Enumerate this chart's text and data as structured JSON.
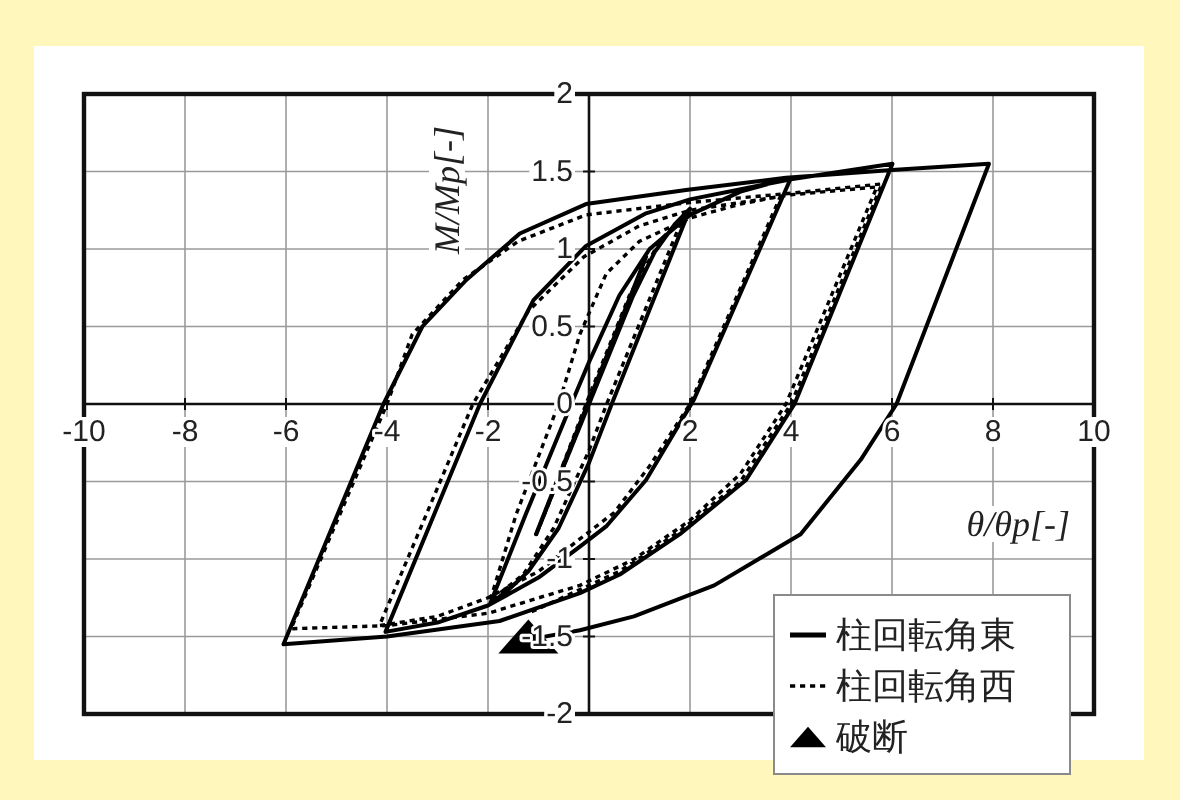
{
  "chart_data": {
    "type": "line",
    "xlabel": "θ/θp[-]",
    "ylabel": "M/Mp[-]",
    "xlim": [
      -10,
      10
    ],
    "ylim": [
      -2,
      2
    ],
    "xticks": [
      -10,
      -8,
      -6,
      -4,
      -2,
      {
        "value": 0,
        "label": null
      },
      2,
      4,
      6,
      8,
      10
    ],
    "yticks": [
      -2,
      -1.5,
      -1,
      -0.5,
      0,
      0.5,
      1,
      1.5,
      2
    ],
    "grid": true,
    "legend": "bottom right",
    "series": [
      {
        "name": "柱回転角東",
        "line_style": "solid",
        "color": "#000000",
        "x": [
          0,
          1.0,
          -1.05,
          1.13,
          -1.05,
          0.0,
          0.8,
          1.3,
          1.7,
          2.0,
          0.45,
          0.0,
          -0.6,
          -1.2,
          -1.6,
          -1.96,
          -1.25,
          -0.35,
          0.0,
          0.6,
          1.2,
          2.0,
          3.0,
          4.0,
          2.08,
          1.13,
          0.34,
          -0.18,
          -1.0,
          -2.0,
          -3.0,
          -4.03,
          -2.16,
          -1.1,
          -0.06,
          1.13,
          2.0,
          4.0,
          6.01,
          4.07,
          3.11,
          1.8,
          0.61,
          -0.18,
          -1.77,
          -4.0,
          -6.05,
          -4.07,
          -3.3,
          -2.43,
          -1.37,
          -0.06,
          1.92,
          3.9,
          6.0,
          7.92,
          6.09,
          5.38,
          4.19,
          2.48,
          0.89,
          -0.18,
          -1.2
        ],
        "values": [
          0,
          0.8,
          -0.84,
          0.95,
          -0.84,
          0.0,
          0.65,
          0.98,
          1.16,
          1.26,
          0.0,
          -0.38,
          -0.8,
          -1.08,
          -1.2,
          -1.29,
          -0.71,
          0.0,
          0.27,
          0.7,
          1.0,
          1.22,
          1.37,
          1.46,
          0.03,
          -0.49,
          -0.79,
          -0.92,
          -1.12,
          -1.3,
          -1.41,
          -1.47,
          0.0,
          0.67,
          1.02,
          1.23,
          1.32,
          1.45,
          1.55,
          0.0,
          -0.49,
          -0.84,
          -1.1,
          -1.22,
          -1.4,
          -1.5,
          -1.55,
          0.0,
          0.5,
          0.8,
          1.1,
          1.29,
          1.38,
          1.46,
          1.51,
          1.55,
          0.0,
          -0.36,
          -0.84,
          -1.17,
          -1.37,
          -1.46,
          -1.52
        ]
      },
      {
        "name": "柱回転角西",
        "line_style": "dotted",
        "color": "#000000",
        "x": [
          0,
          1.0,
          -1.05,
          1.1,
          -1.05,
          0.0,
          0.8,
          1.4,
          1.88,
          0.35,
          0.0,
          -0.7,
          -1.3,
          -1.96,
          -1.44,
          -0.6,
          -0.18,
          0.34,
          1.0,
          2.0,
          3.0,
          3.79,
          2.0,
          1.2,
          0.5,
          -0.18,
          -1.0,
          -2.0,
          -3.0,
          -4.15,
          -2.3,
          -1.2,
          -0.1,
          1.0,
          2.0,
          3.0,
          4.0,
          5.7,
          3.9,
          3.0,
          2.0,
          0.9,
          -0.18,
          -2.0,
          -4.0,
          -5.9,
          -4.0,
          -3.5,
          -2.5,
          -1.4,
          -0.06,
          2.0,
          4.0,
          5.8,
          4.0,
          3.0,
          1.8,
          0.6,
          -0.2,
          -1.2
        ],
        "values": [
          0,
          0.82,
          -0.85,
          0.92,
          -0.85,
          0.05,
          0.7,
          1.05,
          1.22,
          0.0,
          -0.3,
          -0.8,
          -1.1,
          -1.27,
          -0.71,
          0.0,
          0.45,
          0.84,
          1.05,
          1.2,
          1.29,
          1.34,
          0.0,
          -0.4,
          -0.7,
          -0.87,
          -1.08,
          -1.25,
          -1.37,
          -1.43,
          0.0,
          0.6,
          0.95,
          1.15,
          1.25,
          1.3,
          1.35,
          1.4,
          0.0,
          -0.45,
          -0.75,
          -1.0,
          -1.17,
          -1.35,
          -1.43,
          -1.45,
          0.0,
          0.45,
          0.8,
          1.05,
          1.22,
          1.3,
          1.36,
          1.42,
          0.0,
          -0.5,
          -0.82,
          -1.08,
          -1.2,
          -1.35
        ]
      },
      {
        "name": "破断",
        "type": "scatter",
        "marker": "triangle",
        "color": "#000000",
        "x": [
          -1.2
        ],
        "values": [
          -1.5
        ]
      }
    ]
  }
}
